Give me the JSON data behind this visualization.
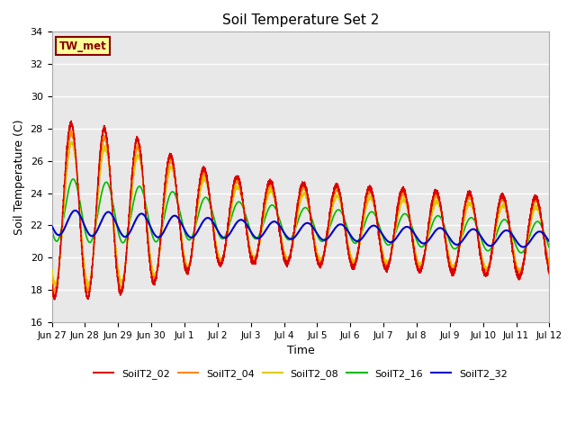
{
  "title": "Soil Temperature Set 2",
  "xlabel": "Time",
  "ylabel": "Soil Temperature (C)",
  "ylim": [
    16,
    34
  ],
  "xlim": [
    0,
    360
  ],
  "bg_color": "#e8e8e8",
  "grid_color": "white",
  "annotation_text": "TW_met",
  "annotation_bg": "#ffff99",
  "annotation_border": "#880000",
  "series_colors": {
    "SoilT2_02": "#dd0000",
    "SoilT2_04": "#ff8800",
    "SoilT2_08": "#ddcc00",
    "SoilT2_16": "#00bb00",
    "SoilT2_32": "#0000cc"
  },
  "xtick_positions": [
    0,
    24,
    48,
    72,
    96,
    120,
    144,
    168,
    192,
    216,
    240,
    264,
    288,
    312,
    336,
    360
  ],
  "xtick_labels": [
    "Jun 27",
    "Jun 28",
    "Jun 29",
    "Jun 30",
    "Jul 1",
    "Jul 2",
    "Jul 3",
    "Jul 4",
    "Jul 5",
    "Jul 6",
    "Jul 7",
    "Jul 8",
    "Jul 9",
    "Jul 10",
    "Jul 11",
    "Jul 12"
  ],
  "ytick_positions": [
    16,
    18,
    20,
    22,
    24,
    26,
    28,
    30,
    32,
    34
  ],
  "ytick_labels": [
    "16",
    "18",
    "20",
    "22",
    "24",
    "26",
    "28",
    "30",
    "32",
    "34"
  ]
}
